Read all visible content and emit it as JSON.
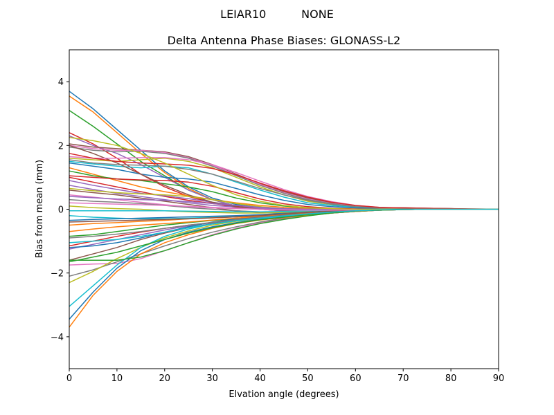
{
  "chart_data": {
    "type": "line",
    "suptitle": "LEIAR10          NONE",
    "title": "Delta Antenna Phase Biases: GLONASS-L2",
    "xlabel": "Elvation angle (degrees)",
    "ylabel": "Bias from mean (mm)",
    "xlim": [
      0,
      90
    ],
    "ylim": [
      -5,
      5
    ],
    "xticks": [
      0,
      10,
      20,
      30,
      40,
      50,
      60,
      70,
      80,
      90
    ],
    "yticks": [
      -4,
      -2,
      0,
      2,
      4
    ],
    "grid": false,
    "legend": "none",
    "x": [
      0,
      5,
      10,
      15,
      20,
      25,
      30,
      35,
      40,
      45,
      50,
      55,
      60,
      65,
      70,
      75,
      80,
      85,
      90
    ],
    "colors": [
      "#1f77b4",
      "#ff7f0e",
      "#2ca02c",
      "#d62728",
      "#9467bd",
      "#8c564b",
      "#e377c2",
      "#7f7f7f",
      "#bcbd22",
      "#17becf"
    ],
    "series": [
      {
        "values": [
          3.7,
          3.15,
          2.5,
          1.85,
          1.2,
          0.7,
          0.35,
          0.15,
          0.05,
          0.0,
          0.0,
          0.0,
          0.0,
          0.0,
          0.0,
          0.0,
          0.0,
          0.0,
          0.0
        ]
      },
      {
        "values": [
          3.55,
          3.05,
          2.4,
          1.75,
          1.15,
          0.65,
          0.3,
          0.1,
          0.0,
          0.0,
          0.0,
          0.0,
          0.0,
          0.0,
          0.0,
          0.0,
          0.0,
          0.0,
          0.0
        ]
      },
      {
        "values": [
          3.1,
          2.6,
          2.05,
          1.5,
          1.05,
          0.6,
          0.3,
          0.1,
          0.0,
          0.0,
          0.0,
          0.0,
          0.0,
          0.0,
          0.0,
          0.0,
          0.0,
          0.0,
          0.0
        ]
      },
      {
        "values": [
          2.4,
          2.05,
          1.6,
          1.1,
          0.7,
          0.4,
          0.2,
          0.05,
          0.0,
          -0.05,
          -0.05,
          0.0,
          0.0,
          0.0,
          0.0,
          0.0,
          0.0,
          0.0,
          0.0
        ]
      },
      {
        "values": [
          2.3,
          2.0,
          1.75,
          1.4,
          1.0,
          0.6,
          0.3,
          0.1,
          0.0,
          -0.05,
          -0.05,
          0.0,
          0.0,
          0.0,
          0.0,
          0.0,
          0.0,
          0.0,
          0.0
        ]
      },
      {
        "values": [
          2.05,
          1.95,
          1.9,
          1.85,
          1.8,
          1.65,
          1.4,
          1.1,
          0.8,
          0.55,
          0.35,
          0.2,
          0.1,
          0.05,
          0.05,
          0.03,
          0.02,
          0.0,
          0.0
        ]
      },
      {
        "values": [
          2.0,
          1.9,
          1.85,
          1.85,
          1.78,
          1.62,
          1.38,
          1.08,
          0.78,
          0.52,
          0.32,
          0.18,
          0.1,
          0.05,
          0.04,
          0.03,
          0.02,
          0.0,
          0.0
        ]
      },
      {
        "values": [
          1.95,
          1.85,
          1.8,
          1.82,
          1.75,
          1.6,
          1.35,
          1.05,
          0.75,
          0.5,
          0.3,
          0.17,
          0.09,
          0.05,
          0.04,
          0.03,
          0.02,
          0.0,
          0.0
        ]
      },
      {
        "values": [
          1.6,
          1.55,
          1.5,
          1.55,
          1.6,
          1.5,
          1.3,
          1.0,
          0.7,
          0.45,
          0.25,
          0.15,
          0.08,
          0.05,
          0.03,
          0.02,
          0.01,
          0.0,
          0.0
        ]
      },
      {
        "values": [
          1.5,
          1.42,
          1.35,
          1.3,
          1.35,
          1.3,
          1.1,
          0.85,
          0.6,
          0.38,
          0.2,
          0.12,
          0.06,
          0.04,
          0.03,
          0.02,
          0.01,
          0.0,
          0.0
        ]
      },
      {
        "values": [
          1.45,
          1.35,
          1.25,
          1.1,
          1.0,
          0.95,
          0.85,
          0.65,
          0.45,
          0.28,
          0.15,
          0.08,
          0.04,
          0.02,
          0.01,
          0.0,
          0.0,
          0.0,
          0.0
        ]
      },
      {
        "values": [
          1.3,
          1.1,
          0.9,
          0.7,
          0.55,
          0.42,
          0.3,
          0.2,
          0.12,
          0.06,
          0.02,
          0.0,
          0.0,
          0.0,
          0.0,
          0.0,
          0.0,
          0.0,
          0.0
        ]
      },
      {
        "values": [
          1.2,
          1.05,
          0.95,
          0.9,
          0.8,
          0.7,
          0.55,
          0.35,
          0.2,
          0.1,
          0.05,
          0.02,
          0.0,
          0.0,
          0.0,
          0.0,
          0.0,
          0.0,
          0.0
        ]
      },
      {
        "values": [
          1.0,
          0.85,
          0.7,
          0.55,
          0.4,
          0.28,
          0.18,
          0.1,
          0.05,
          0.02,
          0.0,
          0.0,
          0.0,
          0.0,
          0.0,
          0.0,
          0.0,
          0.0,
          0.0
        ]
      },
      {
        "values": [
          0.75,
          0.62,
          0.5,
          0.4,
          0.3,
          0.2,
          0.12,
          0.07,
          0.03,
          0.0,
          0.0,
          0.0,
          0.0,
          0.0,
          0.0,
          0.0,
          0.0,
          0.0,
          0.0
        ]
      },
      {
        "values": [
          0.6,
          0.52,
          0.45,
          0.35,
          0.25,
          0.15,
          0.05,
          -0.05,
          -0.1,
          -0.12,
          -0.1,
          -0.07,
          -0.04,
          -0.02,
          0.0,
          0.0,
          0.0,
          0.0,
          0.0
        ]
      },
      {
        "values": [
          0.45,
          0.38,
          0.3,
          0.22,
          0.14,
          0.08,
          0.04,
          0.02,
          0.0,
          0.0,
          0.0,
          0.0,
          0.0,
          0.0,
          0.0,
          0.0,
          0.0,
          0.0,
          0.0
        ]
      },
      {
        "values": [
          0.3,
          0.25,
          0.22,
          0.18,
          0.12,
          0.05,
          0.0,
          -0.05,
          -0.08,
          -0.1,
          -0.08,
          -0.05,
          -0.03,
          -0.02,
          0.0,
          0.0,
          0.0,
          0.0,
          0.0
        ]
      },
      {
        "values": [
          0.1,
          0.05,
          0.02,
          0.0,
          -0.05,
          -0.08,
          -0.1,
          -0.12,
          -0.12,
          -0.1,
          -0.08,
          -0.05,
          -0.03,
          -0.02,
          0.0,
          0.0,
          0.0,
          0.0,
          0.0
        ]
      },
      {
        "values": [
          -0.2,
          -0.25,
          -0.28,
          -0.3,
          -0.3,
          -0.28,
          -0.25,
          -0.22,
          -0.18,
          -0.14,
          -0.1,
          -0.06,
          -0.03,
          -0.02,
          0.0,
          0.0,
          0.0,
          0.0,
          0.0
        ]
      },
      {
        "values": [
          -0.35,
          -0.32,
          -0.3,
          -0.28,
          -0.26,
          -0.24,
          -0.22,
          -0.2,
          -0.17,
          -0.13,
          -0.09,
          -0.05,
          -0.03,
          -0.02,
          0.0,
          0.0,
          0.0,
          0.0,
          0.0
        ]
      },
      {
        "values": [
          -0.5,
          -0.45,
          -0.42,
          -0.38,
          -0.35,
          -0.3,
          -0.27,
          -0.24,
          -0.2,
          -0.15,
          -0.1,
          -0.06,
          -0.03,
          -0.01,
          0.0,
          0.0,
          0.0,
          0.0,
          0.0
        ]
      },
      {
        "values": [
          -0.85,
          -0.8,
          -0.7,
          -0.6,
          -0.5,
          -0.42,
          -0.35,
          -0.3,
          -0.26,
          -0.2,
          -0.14,
          -0.09,
          -0.05,
          -0.02,
          0.0,
          0.0,
          0.0,
          0.0,
          0.0
        ]
      },
      {
        "values": [
          -1.15,
          -1.0,
          -0.85,
          -0.72,
          -0.6,
          -0.5,
          -0.42,
          -0.36,
          -0.3,
          -0.24,
          -0.17,
          -0.11,
          -0.06,
          -0.03,
          -0.01,
          0.0,
          0.0,
          0.0,
          0.0
        ]
      },
      {
        "values": [
          -1.25,
          -1.1,
          -0.95,
          -0.8,
          -0.65,
          -0.52,
          -0.42,
          -0.34,
          -0.28,
          -0.22,
          -0.16,
          -0.1,
          -0.05,
          -0.02,
          0.0,
          0.0,
          0.0,
          0.0,
          0.0
        ]
      },
      {
        "values": [
          -1.6,
          -1.4,
          -1.2,
          -0.95,
          -0.75,
          -0.58,
          -0.45,
          -0.36,
          -0.3,
          -0.24,
          -0.18,
          -0.12,
          -0.07,
          -0.03,
          -0.01,
          0.0,
          0.0,
          0.0,
          0.0
        ]
      },
      {
        "values": [
          -1.75,
          -1.72,
          -1.7,
          -1.55,
          -1.3,
          -1.05,
          -0.8,
          -0.6,
          -0.42,
          -0.3,
          -0.2,
          -0.12,
          -0.07,
          -0.03,
          -0.01,
          0.0,
          0.0,
          0.0,
          0.0
        ]
      },
      {
        "values": [
          -2.1,
          -1.9,
          -1.65,
          -1.4,
          -1.15,
          -0.92,
          -0.72,
          -0.55,
          -0.4,
          -0.28,
          -0.18,
          -0.1,
          -0.05,
          -0.02,
          0.0,
          0.0,
          0.0,
          0.0,
          0.0
        ]
      },
      {
        "values": [
          -2.3,
          -1.95,
          -1.55,
          -1.2,
          -0.9,
          -0.68,
          -0.5,
          -0.38,
          -0.3,
          -0.23,
          -0.16,
          -0.1,
          -0.06,
          -0.03,
          -0.01,
          0.0,
          0.0,
          0.0,
          0.0
        ]
      },
      {
        "values": [
          -3.05,
          -2.4,
          -1.75,
          -1.2,
          -0.85,
          -0.62,
          -0.46,
          -0.36,
          -0.29,
          -0.23,
          -0.17,
          -0.11,
          -0.06,
          -0.03,
          -0.01,
          0.0,
          0.0,
          0.0,
          0.0
        ]
      },
      {
        "values": [
          -3.45,
          -2.6,
          -1.85,
          -1.3,
          -0.95,
          -0.72,
          -0.55,
          -0.42,
          -0.32,
          -0.25,
          -0.18,
          -0.12,
          -0.07,
          -0.03,
          -0.01,
          0.0,
          0.0,
          0.0,
          0.0
        ]
      },
      {
        "values": [
          -3.7,
          -2.7,
          -1.95,
          -1.4,
          -1.05,
          -0.8,
          -0.6,
          -0.45,
          -0.34,
          -0.26,
          -0.19,
          -0.12,
          -0.07,
          -0.03,
          -0.01,
          0.0,
          0.0,
          0.0,
          0.0
        ]
      },
      {
        "values": [
          -1.65,
          -1.5,
          -1.35,
          -1.15,
          -0.95,
          -0.75,
          -0.58,
          -0.44,
          -0.33,
          -0.25,
          -0.17,
          -0.1,
          -0.05,
          -0.02,
          0.0,
          0.0,
          0.0,
          0.0,
          0.0
        ]
      },
      {
        "values": [
          1.05,
          1.0,
          0.95,
          0.92,
          0.9,
          0.85,
          0.72,
          0.52,
          0.32,
          0.17,
          0.08,
          0.03,
          0.01,
          0.0,
          0.0,
          0.0,
          0.0,
          0.0,
          0.0
        ]
      },
      {
        "values": [
          0.9,
          0.75,
          0.62,
          0.5,
          0.42,
          0.33,
          0.22,
          0.12,
          0.05,
          0.0,
          -0.02,
          -0.02,
          -0.01,
          0.0,
          0.0,
          0.0,
          0.0,
          0.0,
          0.0
        ]
      },
      {
        "values": [
          2.0,
          1.75,
          1.45,
          1.1,
          0.75,
          0.45,
          0.22,
          0.08,
          0.0,
          -0.03,
          -0.03,
          -0.02,
          0.0,
          0.0,
          0.0,
          0.0,
          0.0,
          0.0,
          0.0
        ]
      },
      {
        "values": [
          1.65,
          1.6,
          1.6,
          1.62,
          1.62,
          1.55,
          1.4,
          1.15,
          0.88,
          0.62,
          0.4,
          0.24,
          0.12,
          0.06,
          0.03,
          0.02,
          0.01,
          0.0,
          0.0
        ]
      },
      {
        "values": [
          1.55,
          1.45,
          1.4,
          1.38,
          1.35,
          1.25,
          1.1,
          0.88,
          0.65,
          0.45,
          0.28,
          0.16,
          0.08,
          0.04,
          0.02,
          0.01,
          0.0,
          0.0,
          0.0
        ]
      },
      {
        "values": [
          0.65,
          0.58,
          0.52,
          0.48,
          0.45,
          0.4,
          0.3,
          0.18,
          0.08,
          0.02,
          0.0,
          0.0,
          0.0,
          0.0,
          0.0,
          0.0,
          0.0,
          0.0,
          0.0
        ]
      },
      {
        "values": [
          -0.05,
          -0.05,
          -0.05,
          -0.05,
          -0.05,
          -0.06,
          -0.07,
          -0.08,
          -0.08,
          -0.07,
          -0.05,
          -0.03,
          -0.02,
          -0.01,
          0.0,
          0.0,
          0.0,
          0.0,
          0.0
        ]
      },
      {
        "values": [
          -1.2,
          -1.15,
          -1.05,
          -0.9,
          -0.72,
          -0.55,
          -0.4,
          -0.3,
          -0.23,
          -0.18,
          -0.13,
          -0.08,
          -0.04,
          -0.02,
          0.0,
          0.0,
          0.0,
          0.0,
          0.0
        ]
      },
      {
        "values": [
          -0.7,
          -0.62,
          -0.55,
          -0.5,
          -0.45,
          -0.4,
          -0.34,
          -0.28,
          -0.22,
          -0.16,
          -0.11,
          -0.06,
          -0.03,
          -0.01,
          0.0,
          0.0,
          0.0,
          0.0,
          0.0
        ]
      },
      {
        "values": [
          -1.6,
          -1.6,
          -1.6,
          -1.5,
          -1.3,
          -1.05,
          -0.82,
          -0.62,
          -0.45,
          -0.32,
          -0.21,
          -0.12,
          -0.06,
          -0.03,
          -0.01,
          0.0,
          0.0,
          0.0,
          0.0
        ]
      },
      {
        "values": [
          1.75,
          1.6,
          1.5,
          1.45,
          1.42,
          1.38,
          1.28,
          1.08,
          0.82,
          0.58,
          0.38,
          0.22,
          0.12,
          0.06,
          0.04,
          0.03,
          0.02,
          0.01,
          0.0
        ]
      },
      {
        "values": [
          0.4,
          0.36,
          0.32,
          0.3,
          0.28,
          0.24,
          0.18,
          0.12,
          0.06,
          0.02,
          0.0,
          0.0,
          0.0,
          0.0,
          0.0,
          0.0,
          0.0,
          0.0,
          0.0
        ]
      },
      {
        "values": [
          -0.4,
          -0.38,
          -0.36,
          -0.34,
          -0.32,
          -0.3,
          -0.27,
          -0.24,
          -0.2,
          -0.15,
          -0.1,
          -0.06,
          -0.03,
          -0.01,
          0.0,
          0.0,
          0.0,
          0.0,
          0.0
        ]
      },
      {
        "values": [
          0.2,
          0.18,
          0.16,
          0.14,
          0.12,
          0.09,
          0.06,
          0.03,
          0.0,
          -0.02,
          -0.03,
          -0.03,
          -0.02,
          -0.01,
          0.0,
          0.0,
          0.0,
          0.0,
          0.0
        ]
      },
      {
        "values": [
          -0.9,
          -0.85,
          -0.78,
          -0.7,
          -0.6,
          -0.5,
          -0.41,
          -0.33,
          -0.26,
          -0.2,
          -0.14,
          -0.09,
          -0.05,
          -0.02,
          0.0,
          0.0,
          0.0,
          0.0,
          0.0
        ]
      },
      {
        "values": [
          2.25,
          2.15,
          2.0,
          1.75,
          1.45,
          1.1,
          0.75,
          0.45,
          0.25,
          0.12,
          0.05,
          0.02,
          0.0,
          0.0,
          0.0,
          0.0,
          0.0,
          0.0,
          0.0
        ]
      },
      {
        "values": [
          -1.05,
          -1.0,
          -0.95,
          -0.85,
          -0.72,
          -0.58,
          -0.46,
          -0.36,
          -0.28,
          -0.21,
          -0.15,
          -0.09,
          -0.05,
          -0.02,
          0.0,
          0.0,
          0.0,
          0.0,
          0.0
        ]
      }
    ]
  }
}
